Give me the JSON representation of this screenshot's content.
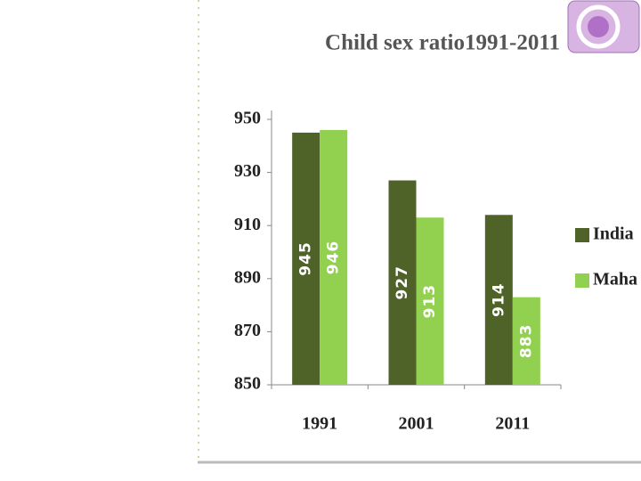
{
  "chart_data": {
    "type": "bar",
    "title": "Child sex ratio1991-2011",
    "categories": [
      "1991",
      "2001",
      "2011"
    ],
    "series": [
      {
        "name": "India",
        "color": "#4f6228",
        "values": [
          945,
          927,
          914
        ]
      },
      {
        "name": "Maha",
        "color": "#92d050",
        "values": [
          946,
          913,
          883
        ]
      }
    ],
    "ylim": [
      850,
      950
    ],
    "yticks": [
      850,
      870,
      890,
      910,
      930,
      950
    ],
    "legend": "right"
  }
}
